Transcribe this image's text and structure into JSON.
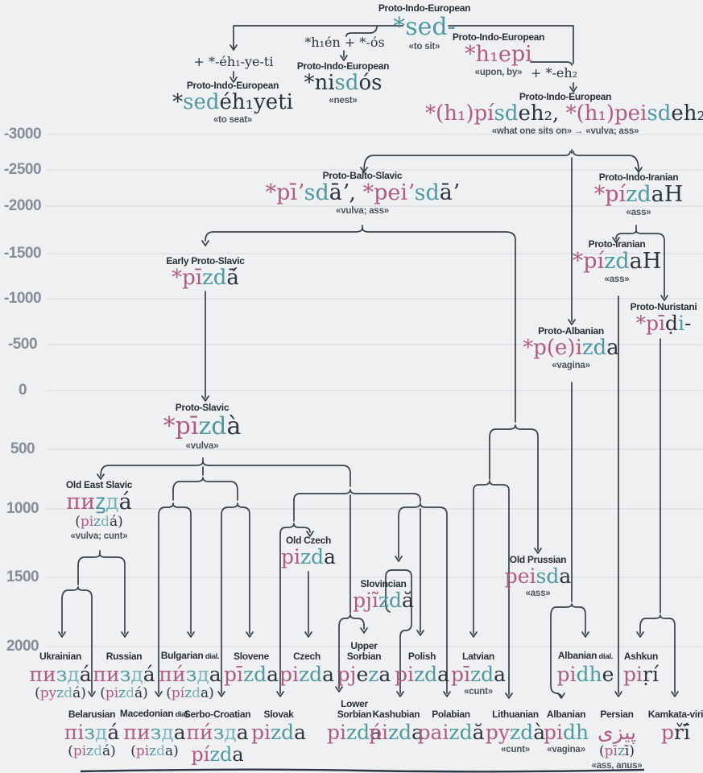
{
  "timeline": {
    "ticks": [
      "-3000",
      "-2500",
      "-2000",
      "-1500",
      "-1000",
      "-500",
      "0",
      "500",
      "1000",
      "1500",
      "2000"
    ]
  },
  "nodes": {
    "sed": {
      "label": "Proto-Indo-European",
      "word": [
        [
          "*sed-",
          "t"
        ]
      ],
      "gloss": "«to sit»"
    },
    "suffix1": {
      "word": [
        [
          "+ *-éh₁-ye-ti",
          "d"
        ]
      ]
    },
    "sedeh1yeti": {
      "label": "Proto-Indo-European",
      "word": [
        [
          "*",
          "d"
        ],
        [
          "sed",
          "t"
        ],
        [
          "éh₁yeti",
          "d"
        ]
      ],
      "gloss": "«to seat»"
    },
    "formula_nisdos": {
      "word": [
        [
          "*h₁én + *-ós",
          "d"
        ]
      ]
    },
    "nisdos": {
      "label": "Proto-Indo-European",
      "word": [
        [
          "*ni",
          "d"
        ],
        [
          "sd",
          "t"
        ],
        [
          "ós",
          "d"
        ]
      ],
      "gloss": "«nest»"
    },
    "h1epi": {
      "label": "Proto-Indo-European",
      "word": [
        [
          "*h₁epi",
          "p"
        ]
      ],
      "gloss": "«upon, by»"
    },
    "suffix2": {
      "word": [
        [
          "+ *-eh₂",
          "d"
        ]
      ]
    },
    "pisdeh2": {
      "label": "Proto-Indo-European",
      "word": [
        [
          "*(h₁)pí",
          "p"
        ],
        [
          "sd",
          "t"
        ],
        [
          "eh₂, ",
          "d"
        ],
        [
          "*(h₁)pei",
          "p"
        ],
        [
          "sd",
          "t"
        ],
        [
          "eh₂",
          "d"
        ]
      ],
      "gloss": "«what one sits on» → «vulva; ass»"
    },
    "balto_slavic": {
      "label": "Proto-Balto-Slavic",
      "word": [
        [
          "*pīʼ",
          "p"
        ],
        [
          "sd",
          "t"
        ],
        [
          "āʼ, ",
          "d"
        ],
        [
          "*peiʼ",
          "p"
        ],
        [
          "sd",
          "t"
        ],
        [
          "āʼ",
          "d"
        ]
      ],
      "gloss": "«vulva; ass»"
    },
    "indo_iranian": {
      "label": "Proto-Indo-Iranian",
      "word": [
        [
          "*pí",
          "p"
        ],
        [
          "zd",
          "t"
        ],
        [
          "aH",
          "d"
        ]
      ],
      "gloss": "«ass»"
    },
    "early_proto_slavic": {
      "label": "Early Proto-Slavic",
      "word": [
        [
          "*pī",
          "p"
        ],
        [
          "zd",
          "t"
        ],
        [
          "ā́",
          "d"
        ]
      ]
    },
    "proto_iranian": {
      "label": "Proto-Iranian",
      "word": [
        [
          "*pí",
          "p"
        ],
        [
          "zd",
          "t"
        ],
        [
          "aH",
          "d"
        ]
      ],
      "gloss": "«ass»"
    },
    "proto_nuristani": {
      "label": "Proto-Nuristani",
      "word": [
        [
          "*pī",
          "p"
        ],
        [
          "ḍ",
          "d"
        ],
        [
          "i",
          "t"
        ],
        [
          "-",
          "d"
        ]
      ]
    },
    "proto_albanian": {
      "label": "Proto-Albanian",
      "word": [
        [
          "*p(e)i",
          "p"
        ],
        [
          "zd",
          "t"
        ],
        [
          "a",
          "d"
        ]
      ],
      "gloss": "«vagina»"
    },
    "proto_slavic": {
      "label": "Proto-Slavic",
      "word": [
        [
          "*pī",
          "p"
        ],
        [
          "zd",
          "t"
        ],
        [
          "à",
          "d"
        ]
      ],
      "gloss": "«vulva»"
    },
    "old_east_slavic": {
      "label": "Old East Slavic",
      "word": [
        [
          "пи",
          "p"
        ],
        [
          "ꙁ",
          "t"
        ],
        [
          "д",
          "l"
        ],
        [
          "а́",
          "d"
        ]
      ],
      "rom": [
        [
          "(",
          "d"
        ],
        [
          "pi",
          "p"
        ],
        [
          "z",
          "t"
        ],
        [
          "d",
          "l"
        ],
        [
          "á)",
          "d"
        ]
      ],
      "gloss": "«vulva; cunt»"
    },
    "old_czech": {
      "label": "Old Czech",
      "word": [
        [
          "pi",
          "p"
        ],
        [
          "zd",
          "t"
        ],
        [
          "a",
          "d"
        ]
      ]
    },
    "slovincian": {
      "label": "Slovincian",
      "word": [
        [
          "pjĩ",
          "p"
        ],
        [
          "zd",
          "t"
        ],
        [
          "ă",
          "d"
        ]
      ]
    },
    "old_prussian": {
      "label": "Old Prussian",
      "word": [
        [
          "pei",
          "p"
        ],
        [
          "sd",
          "t"
        ],
        [
          "a",
          "d"
        ]
      ],
      "gloss": "«ass»"
    }
  },
  "rows": {
    "a": [
      {
        "lang": "Ukrainian",
        "word": [
          [
            "пи",
            "p"
          ],
          [
            "з",
            "t"
          ],
          [
            "д",
            "l"
          ],
          [
            "а́",
            "d"
          ]
        ],
        "rom": [
          [
            "(",
            "d"
          ],
          [
            "py",
            "p"
          ],
          [
            "z",
            "t"
          ],
          [
            "d",
            "l"
          ],
          [
            "á)",
            "d"
          ]
        ]
      },
      {
        "lang": "Russian",
        "word": [
          [
            "пи",
            "p"
          ],
          [
            "з",
            "t"
          ],
          [
            "д",
            "l"
          ],
          [
            "а́",
            "d"
          ]
        ],
        "rom": [
          [
            "(",
            "d"
          ],
          [
            "pi",
            "p"
          ],
          [
            "z",
            "t"
          ],
          [
            "d",
            "l"
          ],
          [
            "á)",
            "d"
          ]
        ]
      },
      {
        "lang": "Bulgarian",
        "dial": "dial.",
        "word": [
          [
            "пи́",
            "p"
          ],
          [
            "з",
            "t"
          ],
          [
            "д",
            "l"
          ],
          [
            "а",
            "d"
          ]
        ],
        "rom": [
          [
            "(",
            "d"
          ],
          [
            "pí",
            "p"
          ],
          [
            "z",
            "t"
          ],
          [
            "d",
            "l"
          ],
          [
            "a)",
            "d"
          ]
        ]
      },
      {
        "lang": "Slovene",
        "word": [
          [
            "pī",
            "p"
          ],
          [
            "zd",
            "t"
          ],
          [
            "a",
            "d"
          ]
        ]
      },
      {
        "lang": "Czech",
        "word": [
          [
            "pi",
            "p"
          ],
          [
            "zd",
            "t"
          ],
          [
            "a",
            "d"
          ]
        ]
      },
      {
        "lang": "Upper Sorbian",
        "stack": true,
        "word": [
          [
            "pj",
            "p"
          ],
          [
            "e",
            "d"
          ],
          [
            "z",
            "t"
          ],
          [
            "a",
            "d"
          ]
        ]
      },
      {
        "lang": "Polish",
        "word": [
          [
            "pi",
            "p"
          ],
          [
            "zd",
            "t"
          ],
          [
            "a",
            "d"
          ]
        ]
      },
      {
        "lang": "Latvian",
        "word": [
          [
            "pī",
            "p"
          ],
          [
            "zd",
            "t"
          ],
          [
            "a",
            "d"
          ]
        ],
        "gloss": "«cunt»"
      },
      {
        "lang": "Albanian",
        "dial": "dial.",
        "word": [
          [
            "pi",
            "p"
          ],
          [
            "dh",
            "t"
          ],
          [
            "e",
            "d"
          ]
        ]
      },
      {
        "lang": "Ashkun",
        "word": [
          [
            "pi",
            "p"
          ],
          [
            "ṛí",
            "d"
          ]
        ]
      }
    ],
    "b": [
      {
        "lang": "Belarusian",
        "word": [
          [
            "пі",
            "p"
          ],
          [
            "з",
            "t"
          ],
          [
            "д",
            "l"
          ],
          [
            "а́",
            "d"
          ]
        ],
        "rom": [
          [
            "(",
            "d"
          ],
          [
            "pi",
            "p"
          ],
          [
            "z",
            "t"
          ],
          [
            "d",
            "l"
          ],
          [
            "á)",
            "d"
          ]
        ]
      },
      {
        "lang": "Macedonian",
        "dial": "dial.",
        "word": [
          [
            "пи",
            "p"
          ],
          [
            "з",
            "t"
          ],
          [
            "д",
            "l"
          ],
          [
            "а",
            "d"
          ]
        ],
        "rom": [
          [
            "(",
            "d"
          ],
          [
            "pi",
            "p"
          ],
          [
            "z",
            "t"
          ],
          [
            "d",
            "l"
          ],
          [
            "a)",
            "d"
          ]
        ]
      },
      {
        "lang": "Serbo-Croatian",
        "word": [
          [
            "пи́",
            "p"
          ],
          [
            "з",
            "t"
          ],
          [
            "д",
            "l"
          ],
          [
            "а",
            "d"
          ]
        ],
        "word2": [
          [
            "pí",
            "p"
          ],
          [
            "zd",
            "t"
          ],
          [
            "a",
            "d"
          ]
        ]
      },
      {
        "lang": "Slovak",
        "word": [
          [
            "pi",
            "p"
          ],
          [
            "zd",
            "t"
          ],
          [
            "a",
            "d"
          ]
        ]
      },
      {
        "lang": "Lower Sorbian",
        "stack": true,
        "word": [
          [
            "pi",
            "p"
          ],
          [
            "zd",
            "t"
          ],
          [
            "a",
            "d"
          ]
        ]
      },
      {
        "lang": "Kashubian",
        "word": [
          [
            "ṕi",
            "p"
          ],
          [
            "zd",
            "t"
          ],
          [
            "a",
            "d"
          ]
        ]
      },
      {
        "lang": "Polabian",
        "word": [
          [
            "pai",
            "p"
          ],
          [
            "zd",
            "t"
          ],
          [
            "ă",
            "d"
          ]
        ]
      },
      {
        "lang": "Lithuanian",
        "word": [
          [
            "py",
            "p"
          ],
          [
            "zd",
            "t"
          ],
          [
            "à",
            "d"
          ]
        ],
        "gloss": "«cunt»"
      },
      {
        "lang": "Albanian",
        "word": [
          [
            "pi",
            "p"
          ],
          [
            "dh",
            "t"
          ]
        ],
        "gloss": "«vagina»"
      },
      {
        "lang": "Persian",
        "arabic": true,
        "word": [
          [
            "پیزی",
            "p"
          ]
        ],
        "rom": [
          [
            "(",
            "d"
          ],
          [
            "pī",
            "p"
          ],
          [
            "z",
            "t"
          ],
          [
            "ī)",
            "d"
          ]
        ],
        "gloss": "«ass, anus»"
      },
      {
        "lang": "Kamkata-viri",
        "word": [
          [
            "p",
            "p"
          ],
          [
            "řī́",
            "d"
          ]
        ]
      }
    ]
  }
}
